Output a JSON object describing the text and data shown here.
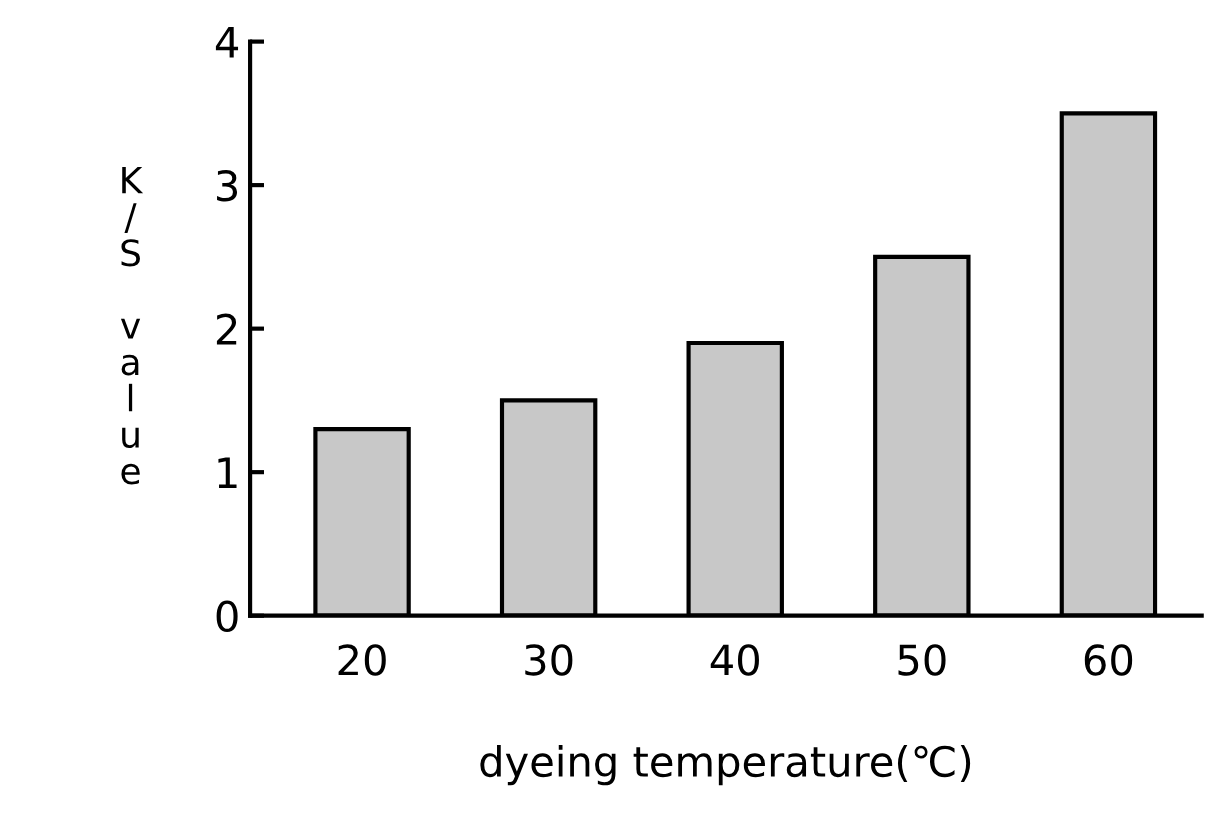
{
  "chart_data": {
    "type": "bar",
    "xlabel": "dyeing temperature(℃)",
    "ylabel": "K/S value",
    "categories": [
      "20",
      "30",
      "40",
      "50",
      "60"
    ],
    "values": [
      1.3,
      1.5,
      1.9,
      2.5,
      3.5
    ],
    "color": "#c8c8c8",
    "ylim": [
      0,
      4
    ],
    "yticks": [
      0,
      1,
      2,
      3,
      4
    ],
    "grid": false,
    "legend": false
  }
}
